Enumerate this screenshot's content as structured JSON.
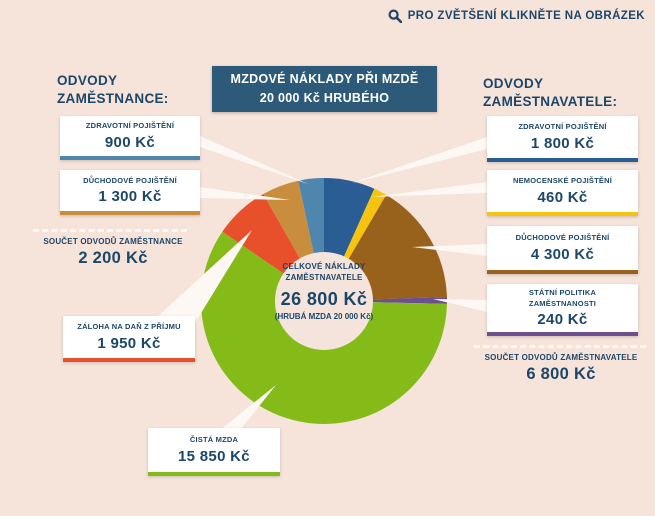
{
  "page": {
    "zoom_hint": "PRO ZVĚTŠENÍ KLIKNĚTE NA OBRÁZEK",
    "background_color": "#f6e3da",
    "text_color": "#1c4769"
  },
  "title_box": {
    "bg_color": "#2d5a78",
    "line1": "MZDOVÉ NÁKLADY PŘI MZDĚ",
    "line2": "20 000 Kč HRUBÉHO"
  },
  "employee": {
    "header_line1": "ODVODY",
    "header_line2": "ZAMĚSTNANCE:",
    "items": [
      {
        "label": "ZDRAVOTNÍ POJIŠTĚNÍ",
        "value": "900 Kč",
        "color": "#4f86ad"
      },
      {
        "label": "DŮCHODOVÉ POJIŠTĚNÍ",
        "value": "1 300 Kč",
        "color": "#c98d3e"
      }
    ],
    "sum_label": "SOUČET ODVODŮ ZAMĚSTNANCE",
    "sum_value": "2 200 Kč",
    "tax_box": {
      "label": "ZÁLOHA NA DAŇ Z PŘÍJMU",
      "value": "1 950 Kč",
      "color": "#e8502c"
    },
    "net_box": {
      "label": "ČISTÁ MZDA",
      "value": "15 850 Kč",
      "color": "#85bb19"
    }
  },
  "employer": {
    "header_line1": "ODVODY",
    "header_line2": "ZAMĚSTNAVATELE:",
    "items": [
      {
        "label": "ZDRAVOTNÍ POJIŠTĚNÍ",
        "value": "1 800 Kč",
        "color": "#2a5d93"
      },
      {
        "label": "NEMOCENSKÉ POJIŠTĚNÍ",
        "value": "460 Kč",
        "color": "#f6c40e"
      },
      {
        "label": "DŮCHODOVÉ POJIŠTĚNÍ",
        "value": "4 300 Kč",
        "color": "#98621c"
      },
      {
        "label": "STÁTNÍ POLITIKA ZAMĚSTNANOSTI",
        "value": "240 Kč",
        "color": "#6b4f8e"
      }
    ],
    "sum_label": "SOUČET ODVODŮ ZAMĚSTNAVATELE",
    "sum_value": "6 800 Kč"
  },
  "donut_center": {
    "line1": "CELKOVÉ NÁKLADY",
    "line2": "ZAMĚSTNAVATELE",
    "value": "26 800 Kč",
    "sub": "(HRUBÁ MZDA 20 000 Kč)"
  },
  "chart_data": {
    "type": "pie",
    "donut": true,
    "title": "MZDOVÉ NÁKLADY PŘI MZDĚ 20 000 Kč HRUBÉHO",
    "center_label": "CELKOVÉ NÁKLADY ZAMĚSTNAVATELE",
    "total_value_kc": 26800,
    "gross_wage_kc": 20000,
    "unit": "Kč",
    "start_at_top_clockwise": true,
    "segments": [
      {
        "id": "zdravotni-pojisteni-zamestnavatel",
        "group": "ODVODY ZAMĚSTNAVATELE",
        "label": "ZDRAVOTNÍ POJIŠTĚNÍ",
        "value": 1800,
        "color": "#2a5d93"
      },
      {
        "id": "nemocenske-pojisteni",
        "group": "ODVODY ZAMĚSTNAVATELE",
        "label": "NEMOCENSKÉ POJIŠTĚNÍ",
        "value": 460,
        "color": "#f6c40e"
      },
      {
        "id": "duchodove-pojisteni-zamestnavatel",
        "group": "ODVODY ZAMĚSTNAVATELE",
        "label": "DŮCHODOVÉ POJIŠTĚNÍ",
        "value": 4300,
        "color": "#98621c"
      },
      {
        "id": "statni-politika-zamestnanosti",
        "group": "ODVODY ZAMĚSTNAVATELE",
        "label": "STÁTNÍ POLITIKA ZAMĚSTNANOSTI",
        "value": 240,
        "color": "#6b4f8e"
      },
      {
        "id": "cista-mzda",
        "group": "ZAMĚSTNANEC",
        "label": "ČISTÁ MZDA",
        "value": 15850,
        "color": "#85bb19"
      },
      {
        "id": "zaloha-na-dan-z-prijmu",
        "group": "ODVODY ZAMĚSTNANCE",
        "label": "ZÁLOHA NA DAŇ Z PŘÍJMU",
        "value": 1950,
        "color": "#e8502c"
      },
      {
        "id": "duchodove-pojisteni-zamestnanec",
        "group": "ODVODY ZAMĚSTNANCE",
        "label": "DŮCHODOVÉ POJIŠTĚNÍ",
        "value": 1300,
        "color": "#c98d3e"
      },
      {
        "id": "zdravotni-pojisteni-zamestnanec",
        "group": "ODVODY ZAMĚSTNANCE",
        "label": "ZDRAVOTNÍ POJIŠTĚNÍ",
        "value": 900,
        "color": "#4f86ad"
      }
    ]
  }
}
